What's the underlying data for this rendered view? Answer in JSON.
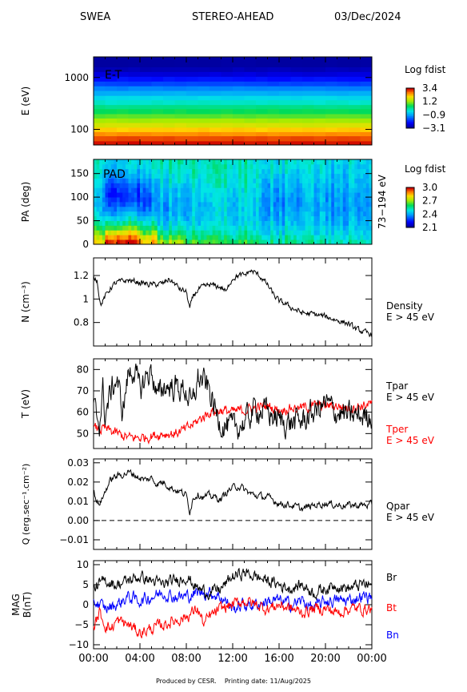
{
  "header": {
    "instrument": "SWEA",
    "spacecraft": "STEREO-AHEAD",
    "date": "03/Dec/2024"
  },
  "footer": {
    "produced_by": "Produced by CESR.",
    "printing_date": "Printing date: 11/Aug/2025"
  },
  "time_axis": {
    "ticks": [
      "00:00",
      "04:00",
      "08:00",
      "12:00",
      "16:00",
      "20:00",
      "00:00"
    ],
    "range_hours": [
      0,
      24
    ]
  },
  "colors": {
    "black": "#000000",
    "red": "#ff0000",
    "blue": "#0000ff"
  },
  "chart_data": [
    {
      "type": "heatmap",
      "panel": "energy-time",
      "label": "E-T",
      "ylabel": "E (eV)",
      "yscale": "log",
      "ylim": [
        50,
        2500
      ],
      "yticks": [
        100,
        1000
      ],
      "colorbar": {
        "title": "Log fdist",
        "ticks": [
          "3.4",
          "1.2",
          "−0.9",
          "−3.1"
        ],
        "range": [
          -3.1,
          3.4
        ]
      },
      "bands": [
        {
          "e_low": 50,
          "e_high": 60,
          "value": 3.3
        },
        {
          "e_low": 60,
          "e_high": 75,
          "value": 3.0
        },
        {
          "e_low": 75,
          "e_high": 90,
          "value": 2.6
        },
        {
          "e_low": 90,
          "e_high": 110,
          "value": 2.2
        },
        {
          "e_low": 110,
          "e_high": 135,
          "value": 1.7
        },
        {
          "e_low": 135,
          "e_high": 165,
          "value": 1.3
        },
        {
          "e_low": 165,
          "e_high": 200,
          "value": 0.9
        },
        {
          "e_low": 200,
          "e_high": 250,
          "value": 0.5
        },
        {
          "e_low": 250,
          "e_high": 300,
          "value": 0.2
        },
        {
          "e_low": 300,
          "e_high": 370,
          "value": -0.2
        },
        {
          "e_low": 370,
          "e_high": 450,
          "value": -0.5
        },
        {
          "e_low": 450,
          "e_high": 560,
          "value": -0.9
        },
        {
          "e_low": 560,
          "e_high": 690,
          "value": -1.3
        },
        {
          "e_low": 690,
          "e_high": 850,
          "value": -1.8
        },
        {
          "e_low": 850,
          "e_high": 1050,
          "value": -2.2
        },
        {
          "e_low": 1050,
          "e_high": 1300,
          "value": -2.6
        },
        {
          "e_low": 1300,
          "e_high": 1600,
          "value": -2.9
        },
        {
          "e_low": 1600,
          "e_high": 2500,
          "value": -3.1
        }
      ]
    },
    {
      "type": "heatmap",
      "panel": "pitch-angle",
      "label": "PAD",
      "ylabel": "PA (deg)",
      "ylim": [
        0,
        180
      ],
      "yticks": [
        0,
        50,
        100,
        150
      ],
      "energy_range_label": "73−194 eV",
      "colorbar": {
        "title": "Log fdist",
        "ticks": [
          "3.0",
          "2.7",
          "2.4",
          "2.1"
        ],
        "range": [
          2.1,
          3.0
        ]
      },
      "pa_bins": [
        0,
        10,
        20,
        30,
        40,
        50,
        60,
        70,
        80,
        90,
        100,
        110,
        120,
        130,
        140,
        150,
        160,
        170,
        180
      ],
      "segments": [
        {
          "t_start": 0.0,
          "t_end": 1.0,
          "column": [
            2.78,
            2.72,
            2.64,
            2.57,
            2.5,
            2.45,
            2.41,
            2.39,
            2.38,
            2.38,
            2.39,
            2.4,
            2.42,
            2.44,
            2.45,
            2.46,
            2.47,
            2.48
          ]
        },
        {
          "t_start": 1.0,
          "t_end": 4.0,
          "column": [
            2.97,
            2.9,
            2.78,
            2.65,
            2.55,
            2.47,
            2.41,
            2.35,
            2.3,
            2.27,
            2.26,
            2.27,
            2.3,
            2.34,
            2.38,
            2.41,
            2.44,
            2.45
          ]
        },
        {
          "t_start": 4.0,
          "t_end": 5.5,
          "column": [
            2.85,
            2.78,
            2.68,
            2.6,
            2.52,
            2.45,
            2.39,
            2.35,
            2.33,
            2.32,
            2.33,
            2.35,
            2.37,
            2.4,
            2.43,
            2.45,
            2.47,
            2.48
          ]
        },
        {
          "t_start": 5.5,
          "t_end": 8.0,
          "column": [
            2.7,
            2.63,
            2.56,
            2.5,
            2.46,
            2.42,
            2.4,
            2.39,
            2.39,
            2.4,
            2.41,
            2.42,
            2.44,
            2.46,
            2.48,
            2.5,
            2.51,
            2.52
          ]
        },
        {
          "t_start": 8.0,
          "t_end": 10.5,
          "column": [
            2.64,
            2.58,
            2.53,
            2.49,
            2.46,
            2.44,
            2.43,
            2.43,
            2.43,
            2.44,
            2.45,
            2.46,
            2.47,
            2.49,
            2.5,
            2.51,
            2.52,
            2.52
          ]
        },
        {
          "t_start": 10.5,
          "t_end": 14.5,
          "column": [
            2.6,
            2.56,
            2.52,
            2.49,
            2.47,
            2.46,
            2.45,
            2.45,
            2.45,
            2.46,
            2.47,
            2.48,
            2.49,
            2.5,
            2.5,
            2.51,
            2.51,
            2.51
          ]
        },
        {
          "t_start": 14.5,
          "t_end": 18.0,
          "column": [
            2.55,
            2.52,
            2.48,
            2.45,
            2.43,
            2.41,
            2.4,
            2.39,
            2.38,
            2.38,
            2.39,
            2.4,
            2.41,
            2.43,
            2.45,
            2.46,
            2.47,
            2.48
          ]
        },
        {
          "t_start": 18.0,
          "t_end": 24.0,
          "column": [
            2.52,
            2.49,
            2.46,
            2.44,
            2.42,
            2.41,
            2.4,
            2.39,
            2.39,
            2.39,
            2.4,
            2.41,
            2.42,
            2.43,
            2.44,
            2.45,
            2.46,
            2.47
          ]
        }
      ]
    },
    {
      "type": "line",
      "panel": "density",
      "ylabel": "N (cm⁻³)",
      "ylim": [
        0.6,
        1.35
      ],
      "yticks": [
        0.8,
        1.0,
        1.2
      ],
      "legend": [
        "Density",
        "E > 45 eV"
      ],
      "series": [
        {
          "color": "#000000",
          "noise": 0.02,
          "x": [
            0,
            0.3,
            0.6,
            1,
            1.5,
            2,
            3,
            4,
            5,
            6,
            6.5,
            7,
            7.5,
            8,
            8.3,
            8.6,
            9,
            9.5,
            10,
            11,
            11.5,
            11.7,
            12,
            12.5,
            13,
            13.5,
            14,
            14.5,
            15,
            15.5,
            16,
            16.5,
            17,
            18,
            19,
            20,
            21,
            22,
            22.5,
            23,
            23.5,
            24
          ],
          "y": [
            1.18,
            1.17,
            0.95,
            1.02,
            1.1,
            1.14,
            1.16,
            1.14,
            1.12,
            1.13,
            1.17,
            1.13,
            1.08,
            1.06,
            0.92,
            1.02,
            1.08,
            1.1,
            1.12,
            1.1,
            1.06,
            1.13,
            1.18,
            1.2,
            1.2,
            1.24,
            1.22,
            1.18,
            1.12,
            1.04,
            0.98,
            0.96,
            0.93,
            0.88,
            0.87,
            0.85,
            0.82,
            0.79,
            0.75,
            0.73,
            0.71,
            0.7
          ]
        }
      ]
    },
    {
      "type": "line",
      "panel": "temperature",
      "ylabel": "T (eV)",
      "ylim": [
        43,
        85
      ],
      "yticks": [
        50,
        60,
        70,
        80
      ],
      "legend_black": [
        "Tpar",
        "E > 45 eV"
      ],
      "legend_red": [
        "Tper",
        "E > 45 eV"
      ],
      "series": [
        {
          "color": "#000000",
          "noise": 5,
          "x": [
            0,
            0.5,
            0.8,
            1,
            1.5,
            2,
            2.5,
            3,
            3.5,
            4,
            4.5,
            5,
            5.5,
            6,
            7,
            8,
            8.5,
            9,
            9.5,
            10,
            10.5,
            11,
            12,
            13,
            14,
            15,
            16,
            17,
            18,
            19,
            20,
            21,
            22,
            23,
            24
          ],
          "y": [
            62,
            55,
            70,
            58,
            70,
            76,
            60,
            78,
            80,
            70,
            76,
            80,
            66,
            72,
            72,
            70,
            62,
            76,
            74,
            70,
            60,
            55,
            52,
            55,
            62,
            60,
            56,
            55,
            56,
            60,
            64,
            60,
            58,
            58,
            59
          ]
        },
        {
          "color": "#ff0000",
          "noise": 2,
          "x": [
            0,
            1,
            2,
            3,
            4,
            5,
            6,
            7,
            8,
            9,
            10,
            11,
            12,
            13,
            14,
            15,
            16,
            17,
            18,
            19,
            20,
            21,
            22,
            23,
            24
          ],
          "y": [
            52,
            52,
            50,
            48,
            48,
            49,
            50,
            50,
            52,
            56,
            60,
            61,
            60,
            61,
            62,
            63,
            61,
            62,
            62,
            63,
            63,
            63,
            62,
            63,
            64
          ]
        }
      ]
    },
    {
      "type": "line",
      "panel": "heat-flux",
      "ylabel": "Q (erg.sec⁻¹.cm⁻²)",
      "ylim": [
        -0.015,
        0.032
      ],
      "yticks": [
        -0.01,
        0.0,
        0.01,
        0.02,
        0.03
      ],
      "ytick_labels": [
        "−0.01",
        "0.00",
        "0.01",
        "0.02",
        "0.03"
      ],
      "legend": [
        "Qpar",
        "E > 45 eV"
      ],
      "zero_line": "dashed",
      "series": [
        {
          "color": "#000000",
          "noise": 0.0015,
          "x": [
            0,
            0.4,
            0.8,
            1.2,
            1.6,
            2,
            2.5,
            3,
            3.5,
            4,
            4.5,
            5,
            5.5,
            6,
            6.5,
            7,
            7.5,
            8,
            8.3,
            8.6,
            9,
            9.5,
            10,
            10.5,
            11,
            11.5,
            12,
            12.5,
            13,
            13.5,
            14,
            15,
            16,
            17,
            18,
            19,
            20,
            21,
            22,
            23,
            24
          ],
          "y": [
            0.015,
            0.008,
            0.012,
            0.018,
            0.022,
            0.023,
            0.024,
            0.025,
            0.024,
            0.022,
            0.021,
            0.022,
            0.019,
            0.02,
            0.018,
            0.016,
            0.015,
            0.013,
            0.005,
            0.012,
            0.014,
            0.012,
            0.013,
            0.012,
            0.011,
            0.015,
            0.017,
            0.018,
            0.016,
            0.014,
            0.013,
            0.012,
            0.009,
            0.008,
            0.006,
            0.008,
            0.009,
            0.008,
            0.008,
            0.008,
            0.008
          ]
        }
      ]
    },
    {
      "type": "line",
      "panel": "magnetic-field",
      "ylabel": "MAG B(nT)",
      "ylim": [
        -11,
        11
      ],
      "yticks": [
        -10,
        -5,
        0,
        5,
        10
      ],
      "ytick_labels": [
        "−10",
        "−5",
        "0",
        "5",
        "10"
      ],
      "legend": [
        "Br",
        "Bt",
        "Bn"
      ],
      "series": [
        {
          "name": "Br",
          "color": "#000000",
          "noise": 1.2,
          "x": [
            0,
            1,
            2,
            3,
            4,
            5,
            6,
            7,
            8,
            9,
            10,
            11,
            12,
            13,
            14,
            15,
            16,
            17,
            18,
            19,
            20,
            21,
            22,
            23,
            24
          ],
          "y": [
            4,
            6,
            5,
            6,
            7,
            6,
            5,
            6,
            7,
            4,
            3,
            4,
            7,
            8,
            7,
            6,
            5,
            4,
            5,
            3,
            4,
            5,
            4,
            5,
            5
          ]
        },
        {
          "name": "Bt",
          "color": "#ff0000",
          "noise": 1.2,
          "x": [
            0,
            0.5,
            1,
            1.5,
            2,
            3,
            4,
            5,
            6,
            7,
            8,
            9,
            9.5,
            10,
            11,
            12,
            13,
            14,
            15,
            16,
            17,
            18,
            19,
            20,
            21,
            22,
            23,
            24
          ],
          "y": [
            -6,
            -2,
            -5,
            -6,
            -4,
            -5,
            -7,
            -6,
            -5,
            -4,
            -3,
            -1,
            -5,
            -3,
            -1,
            0,
            1,
            0,
            -1,
            0,
            -1,
            -2,
            -1,
            -1,
            -2,
            -1,
            -1,
            -1
          ]
        },
        {
          "name": "Bn",
          "color": "#0000ff",
          "noise": 1.3,
          "x": [
            0,
            1,
            2,
            3,
            4,
            5,
            6,
            7,
            8,
            9,
            10,
            11,
            12,
            13,
            14,
            15,
            16,
            17,
            18,
            19,
            20,
            21,
            22,
            23,
            24
          ],
          "y": [
            1,
            -1,
            0,
            2,
            1,
            2,
            3,
            2,
            2,
            3,
            3,
            2,
            -1,
            0,
            0,
            1,
            1,
            0,
            1,
            -1,
            1,
            1,
            1,
            2,
            2
          ]
        }
      ]
    }
  ]
}
